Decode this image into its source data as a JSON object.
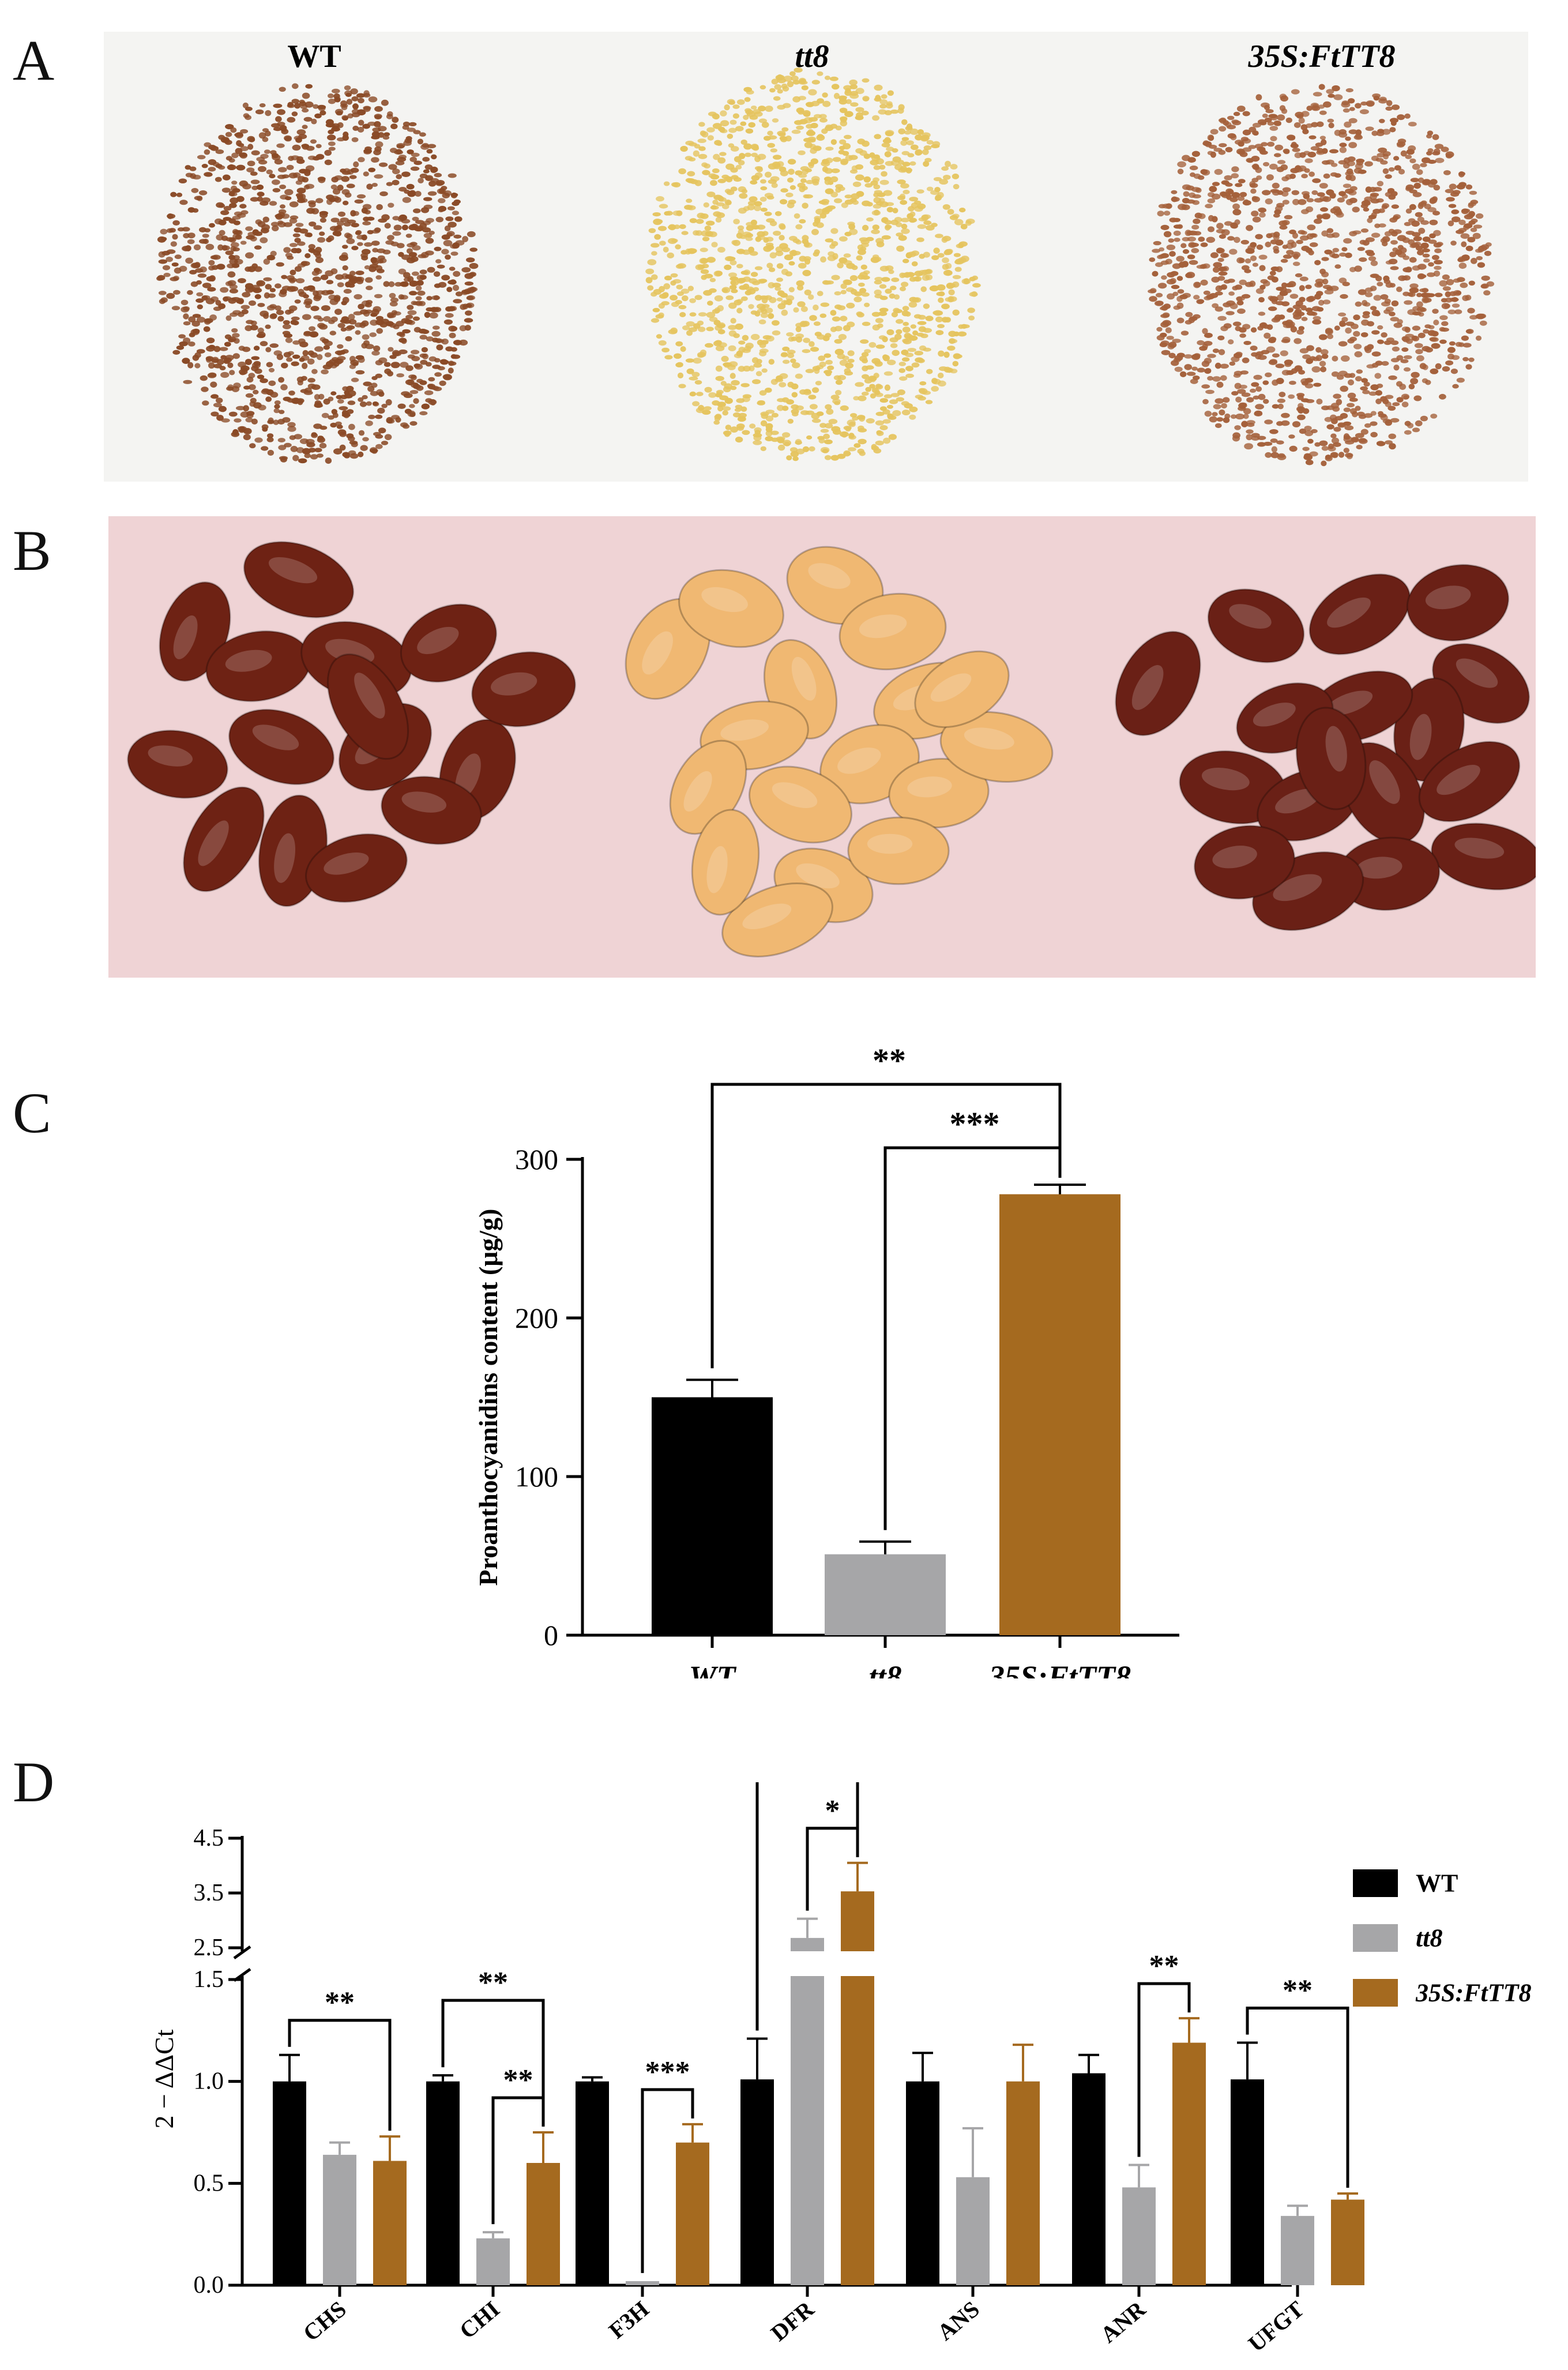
{
  "panels": {
    "a": "A",
    "b": "B",
    "c": "C",
    "d": "D"
  },
  "panel_a": {
    "labels": [
      "WT",
      "tt8",
      "35S:FtTT8"
    ],
    "seed_colors": [
      "#8a4a26",
      "#e5c45e",
      "#a4603a"
    ],
    "background": "#f4f4f2"
  },
  "panel_b": {
    "seed_colors": [
      "#6e2214",
      "#f0b872",
      "#6a2016"
    ],
    "background": "#efd3d5"
  },
  "chart_data": [
    {
      "type": "bar",
      "ylabel": "Proanthocyanidins content (μg/g)",
      "categories": [
        "WT",
        "tt8",
        "35S:FtTT8"
      ],
      "values": [
        150,
        51,
        278
      ],
      "errors": [
        11,
        8,
        6
      ],
      "colors": [
        "#000000",
        "#a6a6a8",
        "#a56a1f"
      ],
      "ylim": [
        0,
        300
      ],
      "yticks": [
        0,
        100,
        200,
        300
      ],
      "significance": [
        {
          "from": "WT",
          "to": "35S:FtTT8",
          "label": "**"
        },
        {
          "from": "tt8",
          "to": "35S:FtTT8",
          "label": "***"
        }
      ]
    },
    {
      "type": "bar",
      "ylabel": "2 − ΔΔCt",
      "axis_break": [
        1.5,
        2.5
      ],
      "yticks": [
        0.0,
        0.5,
        1.0,
        1.5,
        2.5,
        3.5,
        4.5
      ],
      "categories": [
        "CHS",
        "CHI",
        "F3H",
        "DFR",
        "ANS",
        "ANR",
        "UFGT"
      ],
      "legend_position": "right",
      "series": [
        {
          "name": "WT",
          "color": "#000000",
          "values": [
            1.0,
            1.0,
            1.0,
            1.01,
            1.0,
            1.04,
            1.01
          ],
          "errors": [
            0.13,
            0.03,
            0.02,
            0.2,
            0.14,
            0.09,
            0.18
          ]
        },
        {
          "name": "tt8",
          "color": "#a6a6a8",
          "values": [
            0.64,
            0.23,
            0.02,
            2.68,
            0.53,
            0.48,
            0.34
          ],
          "errors": [
            0.06,
            0.03,
            0.0,
            0.35,
            0.24,
            0.11,
            0.05
          ]
        },
        {
          "name": "35S:FtTT8",
          "color": "#a56a1f",
          "values": [
            0.61,
            0.6,
            0.7,
            3.53,
            1.0,
            1.19,
            0.42
          ],
          "errors": [
            0.12,
            0.15,
            0.09,
            0.52,
            0.18,
            0.12,
            0.03
          ]
        }
      ],
      "significance": [
        {
          "gene": "CHS",
          "from": "WT",
          "to": "35S:FtTT8",
          "label": "**"
        },
        {
          "gene": "CHI",
          "from": "WT",
          "to": "35S:FtTT8",
          "label": "**"
        },
        {
          "gene": "CHI",
          "from": "tt8",
          "to": "35S:FtTT8",
          "label": "**"
        },
        {
          "gene": "F3H",
          "from": "tt8",
          "to": "35S:FtTT8",
          "label": "***"
        },
        {
          "gene": "DFR",
          "from": "WT",
          "to": "35S:FtTT8",
          "label": "***"
        },
        {
          "gene": "DFR",
          "from": "tt8",
          "to": "35S:FtTT8",
          "label": "*"
        },
        {
          "gene": "ANR",
          "from": "tt8",
          "to": "35S:FtTT8",
          "label": "**"
        },
        {
          "gene": "UFGT",
          "from": "WT",
          "to": "35S:FtTT8",
          "label": "**"
        }
      ]
    }
  ]
}
